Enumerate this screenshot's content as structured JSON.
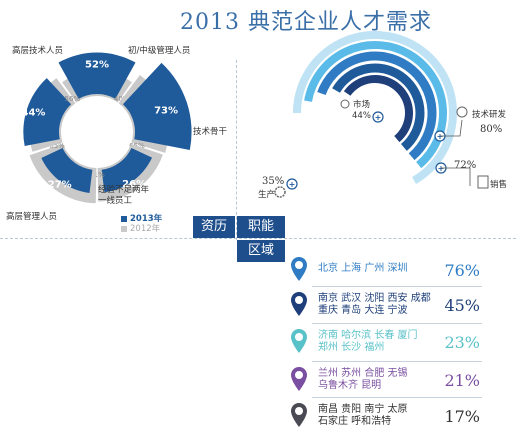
{
  "title": "2013 典范企业人才需求",
  "colors": {
    "dark_blue": "#1f5a9a",
    "gray": "#c9c9c9",
    "light_blue": "#5bbbe8",
    "mid_blue": "#2f7cc4",
    "navy": "#1f3f7a",
    "teal": "#59c2c9",
    "purple": "#7a4ea0",
    "charcoal": "#4a4a55"
  },
  "chart_data": [
    {
      "type": "pie",
      "name_hint": "资历",
      "categories": [
        "高层技术人员",
        "初/中级管理人员",
        "技术骨干",
        "经验不足两年一线员工",
        "高层管理人员"
      ],
      "series": [
        {
          "name": "2013年",
          "values": [
            52,
            73,
            26,
            27,
            44
          ]
        },
        {
          "name": "2012年",
          "values": [
            40,
            65,
            61,
            65,
            56
          ]
        }
      ],
      "legend": [
        "2013年",
        "2012年"
      ],
      "legend_position": "bottom-right"
    },
    {
      "type": "pie",
      "name_hint": "职能",
      "categories": [
        "市场",
        "技术研发",
        "销售",
        "生产"
      ],
      "values": [
        44,
        80,
        72,
        35
      ],
      "value_labels": [
        "44%",
        "80%",
        "72%",
        "35%"
      ]
    },
    {
      "type": "table",
      "name_hint": "区域",
      "rows": [
        {
          "cities": [
            "北京 上海 广州 深圳"
          ],
          "value": 76,
          "label": "76%"
        },
        {
          "cities": [
            "南京 武汉 沈阳 西安 成都",
            "重庆 青岛 大连 宁波"
          ],
          "value": 45,
          "label": "45%"
        },
        {
          "cities": [
            "济南 哈尔滨 长春 厦门",
            "郑州 长沙 福州"
          ],
          "value": 23,
          "label": "23%"
        },
        {
          "cities": [
            "兰州 苏州 合肥 无锡",
            "乌鲁木齐 昆明"
          ],
          "value": 21,
          "label": "21%"
        },
        {
          "cities": [
            "南昌 贵阳 南宁 太原",
            "石家庄 呼和浩特"
          ],
          "value": 17,
          "label": "17%"
        }
      ]
    }
  ],
  "tabs": {
    "zili": "资历",
    "zhineng": "职能",
    "quyu": "区域"
  },
  "left_labels": {
    "top_left": "高层技术人员",
    "top_right": "初/中级管理人员",
    "right": "技术骨干",
    "bottom_mid": "经验不足两年\n一线员工",
    "bottom_left": "高层管理人员",
    "legend_2013": "2013年",
    "legend_2012": "2012年"
  },
  "ring_values": {
    "outer": [
      "52%",
      "73%",
      "26%",
      "27%",
      "44%"
    ],
    "inner": [
      "40%",
      "65%",
      "61%",
      "65%",
      "56%"
    ]
  },
  "func_labels": {
    "market": "市场",
    "market_pct": "44%",
    "rd": "技术研发",
    "rd_pct": "80%",
    "sales": "销售",
    "sales_pct": "72%",
    "prod": "生产",
    "prod_pct": "35%"
  }
}
